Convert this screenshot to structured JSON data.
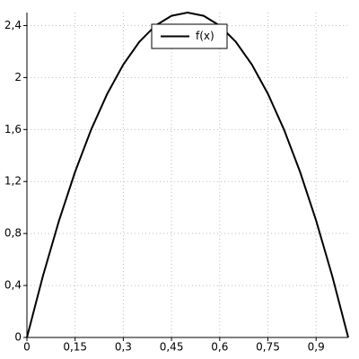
{
  "chart_data": {
    "type": "line",
    "x": [
      0,
      0.05,
      0.1,
      0.15,
      0.2,
      0.25,
      0.3,
      0.35,
      0.4,
      0.45,
      0.5,
      0.55,
      0.6,
      0.65,
      0.7,
      0.75,
      0.8,
      0.85,
      0.9,
      0.95,
      1
    ],
    "series": [
      {
        "name": "f(x)",
        "color": "#000000",
        "values": [
          0,
          0.475,
          0.9,
          1.275,
          1.6,
          1.875,
          2.1,
          2.275,
          2.4,
          2.475,
          2.5,
          2.475,
          2.4,
          2.275,
          2.1,
          1.875,
          1.6,
          1.275,
          0.9,
          0.475,
          0
        ]
      }
    ],
    "xlim": [
      0,
      1
    ],
    "ylim": [
      0,
      2.5
    ],
    "xticks": [
      0,
      {
        "value": 0.15,
        "label": "0,15"
      },
      {
        "value": 0.3,
        "label": "0,3"
      },
      {
        "value": 0.45,
        "label": "0,45"
      },
      {
        "value": 0.6,
        "label": "0,6"
      },
      {
        "value": 0.75,
        "label": "0,75"
      },
      {
        "value": 0.9,
        "label": "0,9"
      }
    ],
    "yticks": [
      0,
      {
        "value": 0.4,
        "label": "0,4"
      },
      {
        "value": 0.8,
        "label": "0,8"
      },
      {
        "value": 1.2,
        "label": "1,2"
      },
      {
        "value": 1.6,
        "label": "1,6"
      },
      2,
      {
        "value": 2.4,
        "label": "2,4"
      }
    ],
    "grid": true,
    "legend": "top-center"
  }
}
